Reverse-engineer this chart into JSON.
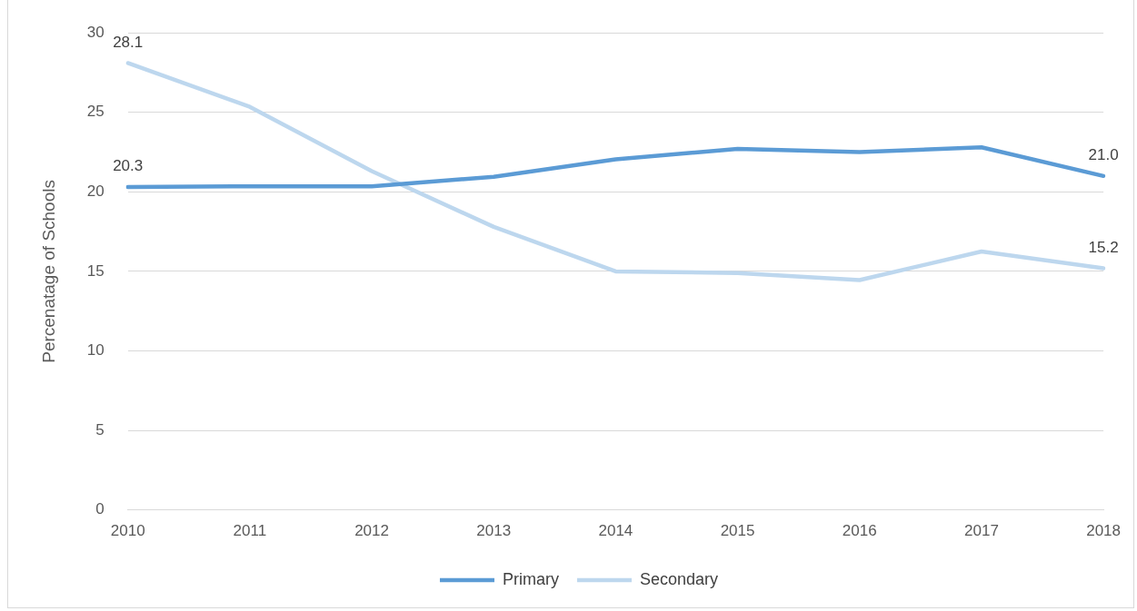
{
  "chart_data": {
    "type": "line",
    "ylabel": "Percenatage of Schools",
    "categories": [
      "2010",
      "2011",
      "2012",
      "2013",
      "2014",
      "2015",
      "2016",
      "2017",
      "2018"
    ],
    "series": [
      {
        "name": "Primary",
        "color": "#5b9bd5",
        "values": [
          20.3,
          20.35,
          20.35,
          20.95,
          22.05,
          22.7,
          22.5,
          22.8,
          21.0
        ],
        "value_labels": [
          "20.3",
          null,
          null,
          null,
          null,
          null,
          null,
          null,
          "21.0"
        ]
      },
      {
        "name": "Secondary",
        "color": "#bdd7ee",
        "values": [
          28.1,
          25.35,
          21.3,
          17.8,
          15.0,
          14.9,
          14.45,
          16.25,
          15.2
        ],
        "value_labels": [
          "28.1",
          null,
          null,
          null,
          null,
          null,
          null,
          null,
          "15.2"
        ]
      }
    ],
    "ylim": [
      0,
      30
    ],
    "yticks": [
      0,
      5,
      10,
      15,
      20,
      25,
      30
    ],
    "grid": "y",
    "legend": "bottom",
    "marker": "none",
    "line_style": "solid"
  }
}
